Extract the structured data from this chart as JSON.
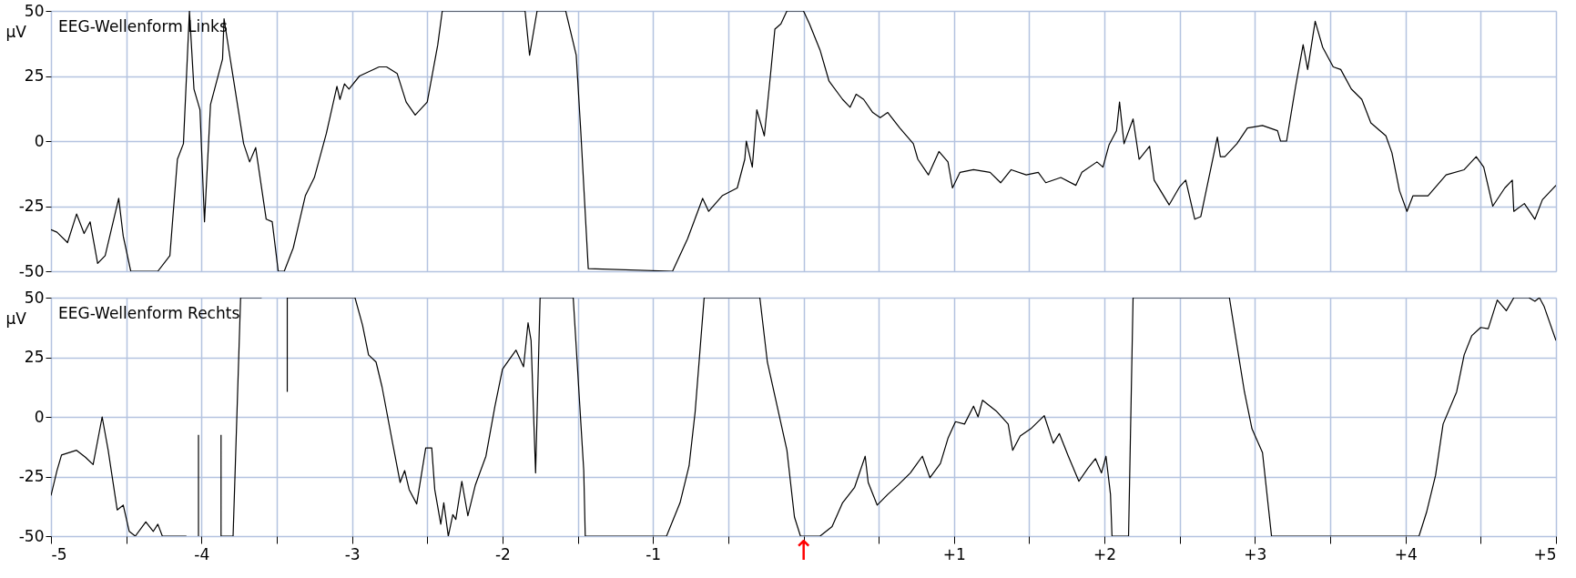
{
  "chart_data": [
    {
      "type": "line",
      "title": "EEG-Wellenform Links",
      "ylabel": "µV",
      "xlim": [
        -5,
        5
      ],
      "ylim": [
        -50,
        50
      ],
      "yticks": [
        -50,
        -25,
        0,
        25,
        50
      ],
      "xticks": [
        -5,
        -4.5,
        -4,
        -3.5,
        -3,
        -2.5,
        -2,
        -1.5,
        -1,
        -0.5,
        0,
        0.5,
        1,
        1.5,
        2,
        2.5,
        3,
        3.5,
        4,
        4.5,
        5
      ],
      "tick_labels": "y",
      "grid": true,
      "marker": "none",
      "line_style": "solid",
      "series": [
        {
          "color": "#000000",
          "x": [
            -5,
            -4.96,
            -4.89,
            -4.83,
            -4.78,
            -4.74,
            -4.69,
            -4.64,
            -4.55,
            -4.52,
            -4.47,
            -4.29,
            -4.21,
            -4.16,
            -4.12,
            -4.08,
            -4.05,
            -4.01,
            -3.98,
            -3.94,
            -3.86,
            -3.85,
            -3.81,
            -3.72,
            -3.68,
            -3.64,
            -3.57,
            -3.53,
            -3.49,
            -3.45,
            -3.39,
            -3.31,
            -3.25,
            -3.17,
            -3.1,
            -3.08,
            -3.05,
            -3.02,
            -2.95,
            -2.82,
            -2.77,
            -2.7,
            -2.64,
            -2.58,
            -2.5,
            -2.43,
            -2.4,
            -1.85,
            -1.82,
            -1.77,
            -1.58,
            -1.51,
            -1.48,
            -1.43,
            -0.87,
            -0.77,
            -0.67,
            -0.63,
            -0.54,
            -0.44,
            -0.39,
            -0.38,
            -0.34,
            -0.31,
            -0.26,
            -0.22,
            -0.19,
            -0.15,
            -0.11,
            0,
            0.04,
            0.11,
            0.17,
            0.26,
            0.31,
            0.35,
            0.4,
            0.46,
            0.51,
            0.56,
            0.64,
            0.73,
            0.76,
            0.83,
            0.9,
            0.96,
            0.99,
            1.04,
            1.13,
            1.24,
            1.31,
            1.38,
            1.48,
            1.56,
            1.61,
            1.71,
            1.81,
            1.85,
            1.95,
            1.99,
            2.03,
            2.08,
            2.1,
            2.13,
            2.19,
            2.23,
            2.3,
            2.33,
            2.43,
            2.5,
            2.54,
            2.6,
            2.64,
            2.75,
            2.77,
            2.8,
            2.88,
            2.95,
            3.05,
            3.15,
            3.17,
            3.21,
            3.27,
            3.32,
            3.35,
            3.4,
            3.45,
            3.52,
            3.57,
            3.64,
            3.71,
            3.77,
            3.87,
            3.91,
            3.96,
            4.01,
            4.05,
            4.15,
            4.27,
            4.39,
            4.47,
            4.52,
            4.58,
            4.66,
            4.71,
            4.72,
            4.79,
            4.86,
            4.91,
            5
          ],
          "values": [
            -34,
            -35,
            -39,
            -28,
            -35.5,
            -31,
            -47,
            -44,
            -22,
            -36.5,
            -50,
            -50,
            -44,
            -7,
            -1,
            50,
            20,
            12,
            -31,
            14,
            31.5,
            47,
            32,
            -1,
            -8,
            -2.5,
            -30,
            -31,
            -50,
            -50,
            -41,
            -21,
            -14,
            3,
            21,
            16,
            22,
            20,
            25,
            28.5,
            28.5,
            26,
            15,
            10,
            15,
            37,
            50,
            50,
            33,
            50,
            50,
            33,
            4,
            -49,
            -50,
            -37.5,
            -22,
            -27,
            -21,
            -18,
            -7,
            0,
            -10,
            12,
            2,
            25,
            43,
            45,
            50,
            50,
            45,
            35,
            23,
            16,
            13,
            18,
            16,
            11,
            9,
            11,
            5,
            -1,
            -7,
            -13,
            -4,
            -8,
            -18,
            -12,
            -11,
            -12,
            -16,
            -11,
            -13,
            -12,
            -16,
            -14,
            -17,
            -12,
            -8,
            -10,
            -1.5,
            4,
            15,
            -1,
            8.5,
            -7,
            -2,
            -15,
            -24.5,
            -17.5,
            -15,
            -30,
            -29,
            1.5,
            -6,
            -6,
            -1,
            5,
            6,
            4,
            0,
            0,
            21,
            37,
            27.5,
            46,
            36,
            28.5,
            27.5,
            20,
            16,
            7,
            2,
            -4.5,
            -19,
            -27,
            -21,
            -21,
            -13,
            -11,
            -6,
            -10,
            -25,
            -18,
            -15,
            -27,
            -24,
            -30,
            -22.5,
            -17
          ]
        }
      ]
    },
    {
      "type": "line",
      "title": "EEG-Wellenform Rechts",
      "ylabel": "µV",
      "xlim": [
        -5,
        5
      ],
      "ylim": [
        -50,
        50
      ],
      "yticks": [
        -50,
        -25,
        0,
        25,
        50
      ],
      "xticks": [
        -5,
        {
          "value": -4.5,
          "label": null
        },
        -4,
        {
          "value": -3.5,
          "label": null
        },
        -3,
        {
          "value": -2.5,
          "label": null
        },
        -2,
        {
          "value": -1.5,
          "label": null
        },
        -1,
        {
          "value": -0.5,
          "label": null
        },
        {
          "value": 0,
          "label": null
        },
        {
          "value": 0.5,
          "label": null
        },
        {
          "value": 1,
          "label": "+1"
        },
        {
          "value": 1.5,
          "label": null
        },
        {
          "value": 2,
          "label": "+2"
        },
        {
          "value": 2.5,
          "label": null
        },
        {
          "value": 3,
          "label": "+3"
        },
        {
          "value": 3.5,
          "label": null
        },
        {
          "value": 4,
          "label": "+4"
        },
        {
          "value": 4.5,
          "label": null
        },
        {
          "value": 5,
          "label": "+5"
        }
      ],
      "grid": true,
      "marker": "none",
      "line_style": "solid",
      "annotations": [
        "↑"
      ],
      "series": [
        {
          "color": "#000000",
          "x": [
            -5,
            -4.96,
            -4.93,
            -4.83,
            -4.77,
            -4.72,
            -4.66,
            -4.62,
            -4.56,
            -4.52,
            -4.48,
            -4.44,
            -4.37,
            -4.32,
            -4.29,
            -4.26,
            -4.1,
            -4.06,
            -4.02,
            -4.02,
            -3.95,
            -3.87,
            -3.87,
            -3.79,
            -3.74,
            -3.6,
            -3.52,
            -3.43,
            -3.43,
            -2.98,
            -2.93,
            -2.89,
            -2.84,
            -2.8,
            -2.73,
            -2.68,
            -2.65,
            -2.62,
            -2.57,
            -2.51,
            -2.47,
            -2.45,
            -2.41,
            -2.39,
            -2.36,
            -2.33,
            -2.31,
            -2.27,
            -2.23,
            -2.18,
            -2.11,
            -2.05,
            -2.0,
            -1.95,
            -1.91,
            -1.86,
            -1.83,
            -1.81,
            -1.78,
            -1.75,
            -1.53,
            -1.46,
            -1.45,
            -0.91,
            -0.82,
            -0.76,
            -0.72,
            -0.66,
            -0.29,
            -0.24,
            -0.11,
            -0.06,
            -0.02,
            0.11,
            0.19,
            0.26,
            0.34,
            0.41,
            0.43,
            0.49,
            0.56,
            0.63,
            0.71,
            0.79,
            0.84,
            0.91,
            0.96,
            1.01,
            1.07,
            1.13,
            1.16,
            1.19,
            1.28,
            1.36,
            1.39,
            1.44,
            1.51,
            1.6,
            1.66,
            1.7,
            1.76,
            1.83,
            1.89,
            1.94,
            1.98,
            2.01,
            2.04,
            2.05,
            2.16,
            2.19,
            2.83,
            2.87,
            2.93,
            2.98,
            3.05,
            3.11,
            4.09,
            4.14,
            4.2,
            4.25,
            4.34,
            4.39,
            4.44,
            4.5,
            4.55,
            4.61,
            4.67,
            4.72,
            4.82,
            4.86,
            4.89,
            4.92,
            5
          ],
          "values": [
            -33,
            -22.5,
            -16,
            -14,
            -17,
            -20,
            0,
            -14,
            -39,
            -37,
            -48,
            -50,
            -44,
            -48,
            -45,
            -50,
            -50,
            null,
            -50,
            -7.5,
            null,
            -7.5,
            -50,
            -50,
            50,
            50,
            null,
            10.5,
            50,
            50,
            38.5,
            26,
            23,
            12.5,
            -11,
            -27.5,
            -22.5,
            -30.5,
            -36.5,
            -13,
            -13,
            -30.5,
            -45,
            -36,
            -50,
            -41,
            -43,
            -27,
            -41.5,
            -28.5,
            -16.5,
            4.5,
            20,
            24.5,
            28,
            21,
            39.5,
            32,
            -23.5,
            50,
            50,
            -22.5,
            -50,
            -50,
            -36,
            -20.5,
            2,
            50,
            50,
            23,
            -14,
            -42,
            -50,
            -50,
            -46,
            -36,
            -29.5,
            -16.5,
            -27.5,
            -37,
            -32.5,
            -28.5,
            -23.5,
            -16.5,
            -25.5,
            -19.5,
            -9,
            -2,
            -3,
            4.5,
            0,
            7,
            2.5,
            -3,
            -14,
            -8,
            -5,
            0.5,
            -11,
            -7,
            -16.5,
            -27,
            -21.5,
            -17.5,
            -23.5,
            -16.5,
            -32.5,
            -50,
            -50,
            50,
            50,
            34,
            10.5,
            -5,
            -15,
            -50,
            -50,
            -40,
            -24.5,
            -3,
            10.5,
            26,
            34,
            37.5,
            37,
            49,
            44.5,
            50,
            50,
            48.5,
            50,
            46.5,
            32
          ]
        }
      ]
    }
  ]
}
